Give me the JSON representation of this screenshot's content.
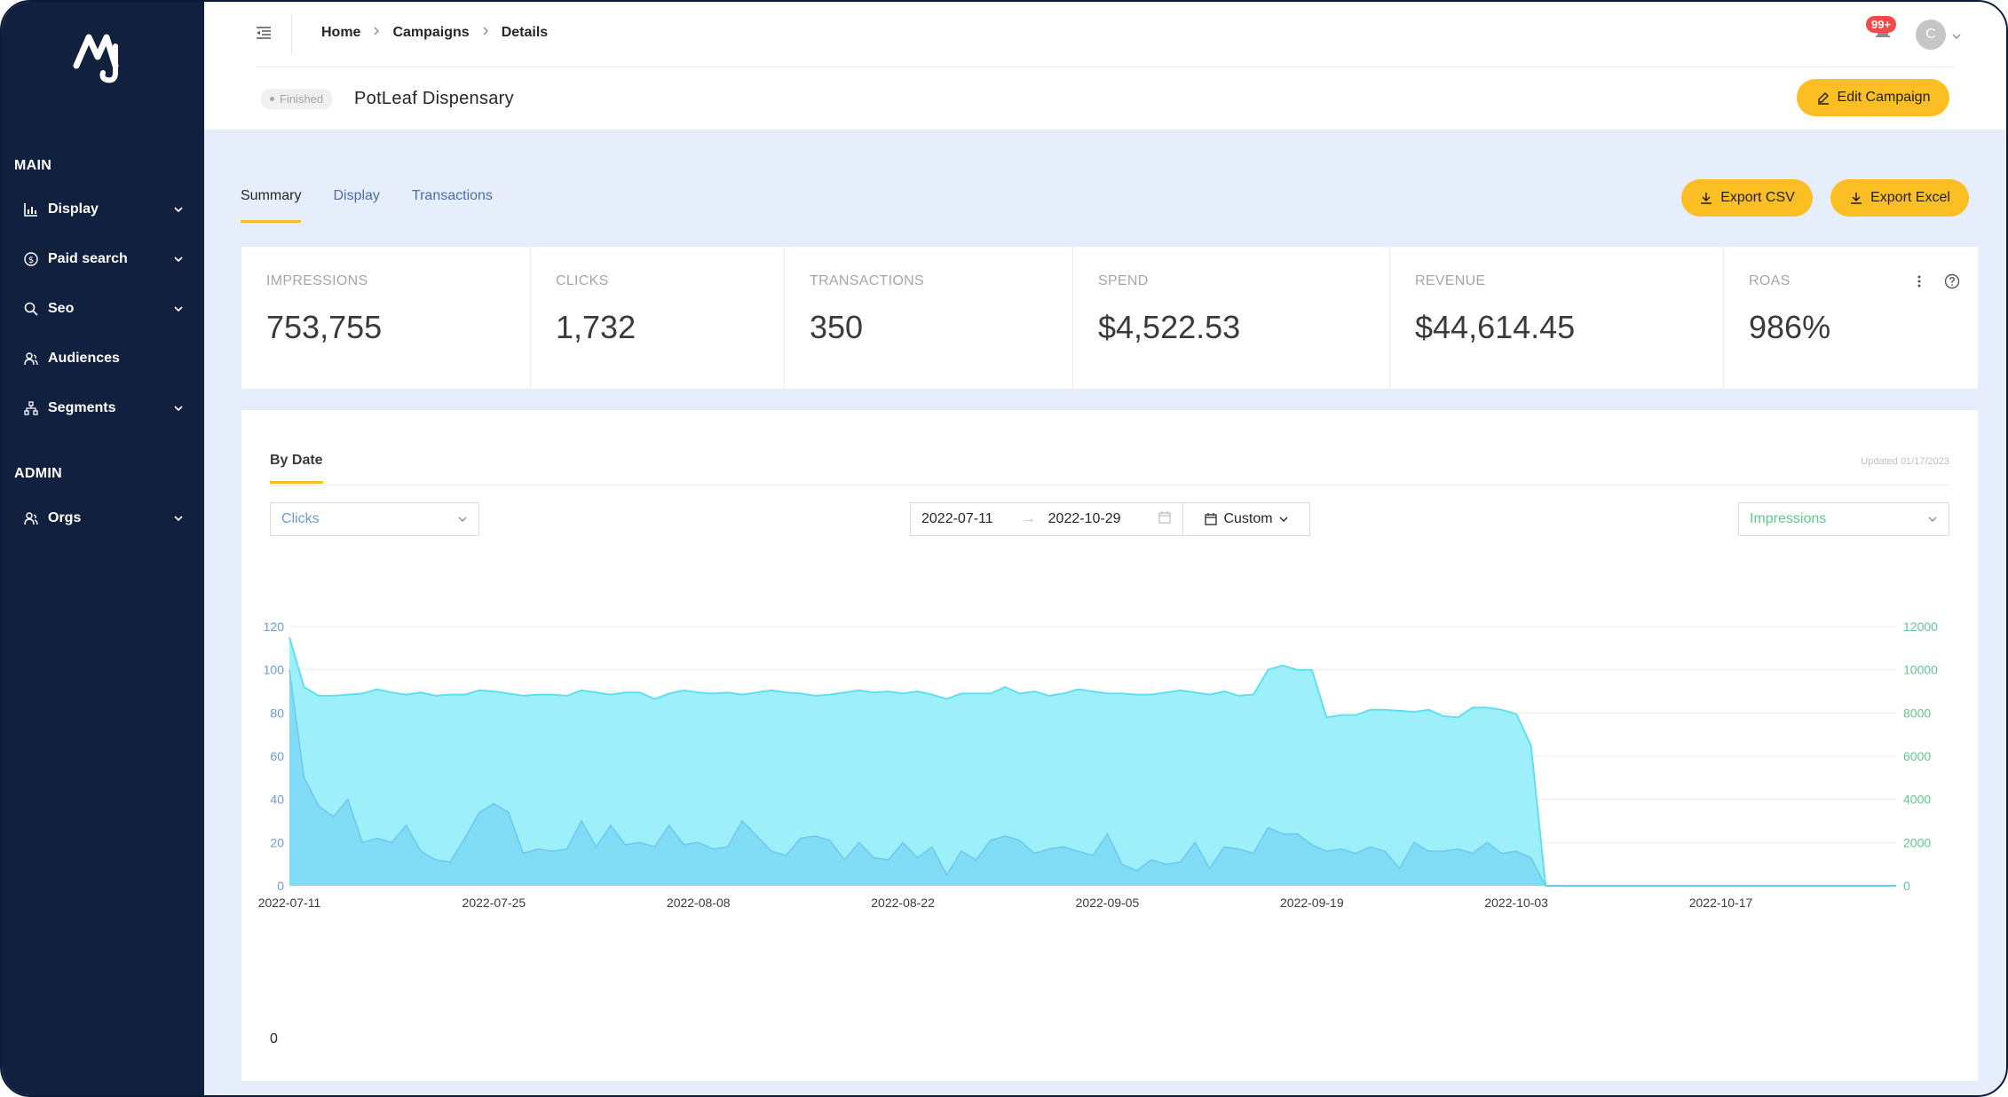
{
  "sidebar": {
    "sections": [
      {
        "label": "MAIN"
      },
      {
        "label": "ADMIN"
      }
    ],
    "items": [
      {
        "label": "Display",
        "icon": "chart-icon",
        "has_submenu": true
      },
      {
        "label": "Paid search",
        "icon": "dollar-icon",
        "has_submenu": true
      },
      {
        "label": "Seo",
        "icon": "search-icon",
        "has_submenu": true
      },
      {
        "label": "Audiences",
        "icon": "audience-icon",
        "has_submenu": false
      },
      {
        "label": "Segments",
        "icon": "segments-icon",
        "has_submenu": true
      },
      {
        "label": "Orgs",
        "icon": "orgs-icon",
        "has_submenu": true
      }
    ]
  },
  "header": {
    "breadcrumb": [
      "Home",
      "Campaigns",
      "Details"
    ],
    "notification_badge": "99+",
    "avatar_initial": "C",
    "status": "Finished",
    "title": "PotLeaf Dispensary",
    "edit_label": "Edit Campaign"
  },
  "tabs": [
    {
      "label": "Summary",
      "active": true
    },
    {
      "label": "Display",
      "active": false
    },
    {
      "label": "Transactions",
      "active": false
    }
  ],
  "export": {
    "csv_label": "Export CSV",
    "excel_label": "Export Excel"
  },
  "stats": [
    {
      "label": "IMPRESSIONS",
      "value": "753,755"
    },
    {
      "label": "CLICKS",
      "value": "1,732"
    },
    {
      "label": "TRANSACTIONS",
      "value": "350"
    },
    {
      "label": "SPEND",
      "value": "$4,522.53"
    },
    {
      "label": "REVENUE",
      "value": "$44,614.45"
    },
    {
      "label": "ROAS",
      "value": "986%"
    }
  ],
  "card": {
    "tab_label": "By Date",
    "updated": "Updated 01/17/2023",
    "left_metric": "Clicks",
    "date_start": "2022-07-11",
    "date_end": "2022-10-29",
    "range_label": "Custom",
    "right_metric": "Impressions",
    "bottom_label": "0"
  },
  "colors": {
    "accent": "#fbbf24",
    "sidebar_bg": "#12203f",
    "clicks_fill": "#7dd8f5",
    "impressions_fill": "#98eefa",
    "left_axis": "#6a9bd8",
    "right_axis": "#5fc78f"
  },
  "chart_data": {
    "type": "area",
    "x_tick_labels": [
      "2022-07-11",
      "2022-07-25",
      "2022-08-08",
      "2022-08-22",
      "2022-09-05",
      "2022-09-19",
      "2022-10-03",
      "2022-10-17"
    ],
    "x_start": "2022-07-11",
    "num_days": 111,
    "y_left": {
      "label": "Clicks",
      "range": [
        0,
        120
      ],
      "ticks": [
        0,
        20,
        40,
        60,
        80,
        100,
        120
      ]
    },
    "y_right": {
      "label": "Impressions",
      "range": [
        0,
        12000
      ],
      "ticks": [
        0,
        2000,
        4000,
        6000,
        8000,
        10000,
        12000
      ]
    },
    "series": [
      {
        "name": "Impressions",
        "axis": "right",
        "values": [
          11500,
          9200,
          8800,
          8800,
          8850,
          8900,
          9100,
          8950,
          8850,
          8950,
          8800,
          8850,
          8850,
          9050,
          9000,
          8900,
          8800,
          8850,
          8850,
          8800,
          9050,
          8950,
          8850,
          8950,
          8950,
          8650,
          8900,
          9050,
          8950,
          8900,
          8950,
          8850,
          8950,
          9050,
          8950,
          8900,
          8800,
          8850,
          8950,
          9050,
          8950,
          9000,
          8900,
          9000,
          8850,
          8650,
          8900,
          8900,
          8900,
          9200,
          8900,
          9000,
          8800,
          8900,
          9100,
          9000,
          8900,
          8900,
          8850,
          8850,
          8950,
          9050,
          8950,
          8850,
          9000,
          8800,
          8850,
          10000,
          10200,
          10000,
          10000,
          7800,
          7900,
          7900,
          8150,
          8150,
          8100,
          8050,
          8150,
          7850,
          7800,
          8250,
          8250,
          8150,
          7950,
          6500,
          0,
          0,
          0,
          0,
          0,
          0,
          0,
          0,
          0,
          0,
          0,
          0,
          0,
          0,
          0,
          0,
          0,
          0,
          0,
          0,
          0,
          0,
          0,
          0,
          0
        ]
      },
      {
        "name": "Clicks",
        "axis": "left",
        "values": [
          100,
          50,
          37,
          32,
          40,
          20,
          22,
          20,
          28,
          16,
          12,
          11,
          22,
          34,
          38,
          34,
          15,
          17,
          16,
          17,
          30,
          18,
          28,
          19,
          20,
          18,
          28,
          19,
          20,
          17,
          18,
          30,
          23,
          16,
          14,
          22,
          23,
          21,
          12,
          20,
          13,
          12,
          20,
          13,
          18,
          5,
          16,
          12,
          21,
          23,
          21,
          15,
          17,
          18,
          16,
          14,
          24,
          10,
          7,
          12,
          10,
          11,
          20,
          8,
          18,
          17,
          15,
          27,
          24,
          24,
          19,
          16,
          17,
          15,
          18,
          16,
          8,
          20,
          16,
          16,
          17,
          15,
          20,
          15,
          16,
          13,
          0,
          0,
          0,
          0,
          0,
          0,
          0,
          0,
          0,
          0,
          0,
          0,
          0,
          0,
          0,
          0,
          0,
          0,
          0,
          0,
          0,
          0,
          0,
          0,
          0
        ]
      }
    ],
    "grid": true,
    "legend": "none"
  }
}
